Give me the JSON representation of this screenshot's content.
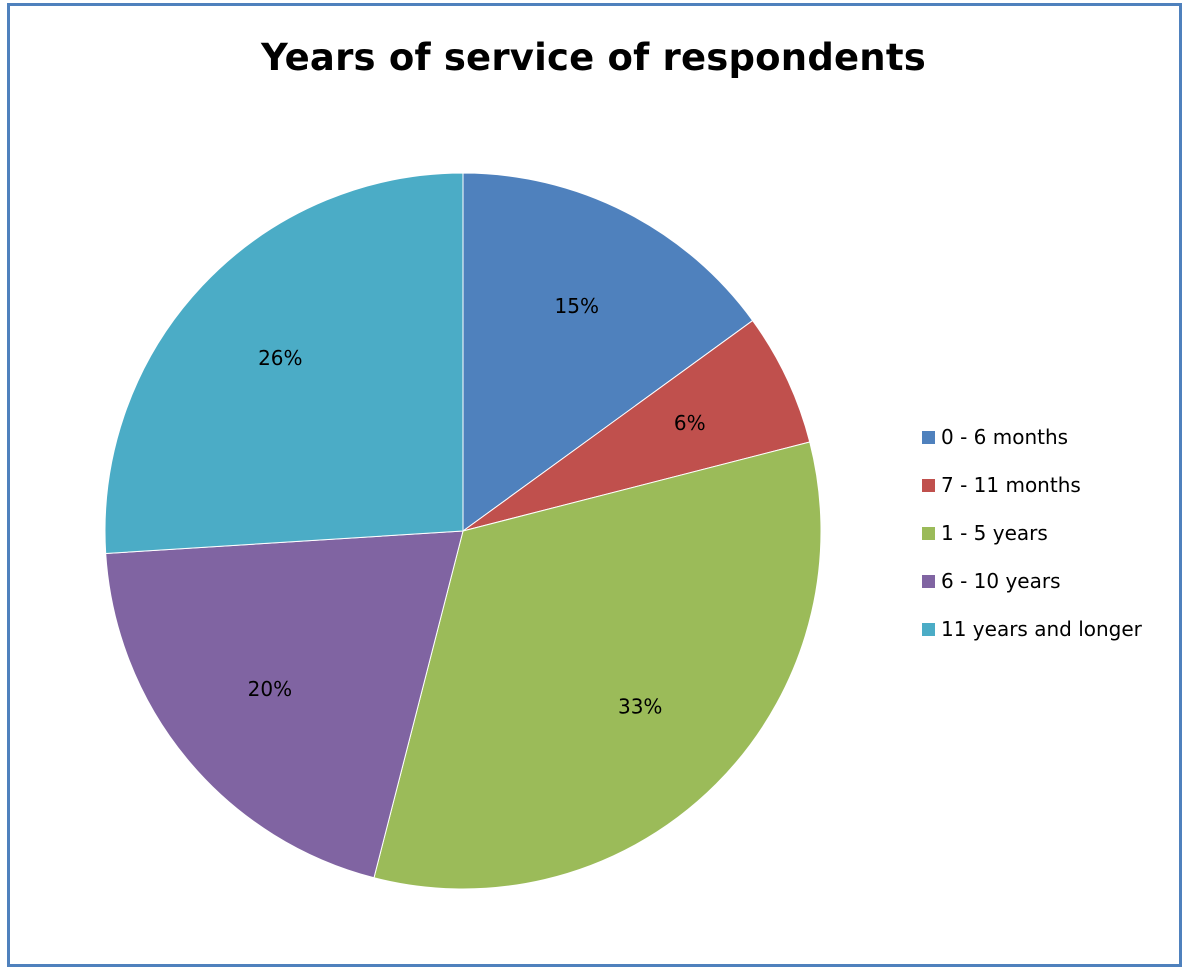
{
  "chart_data": {
    "type": "pie",
    "title": "Years of service of respondents",
    "categories": [
      "0 - 6 months",
      "7 - 11 months",
      "1 - 5 years",
      "6 - 10 years",
      "11 years and longer"
    ],
    "values": [
      15,
      6,
      33,
      20,
      26
    ],
    "value_labels": [
      "15%",
      "6%",
      "33%",
      "20%",
      "26%"
    ],
    "colors": [
      "#4f81bd",
      "#c0504d",
      "#9bbb59",
      "#8064a2",
      "#4bacc6"
    ],
    "start_angle": "12 o'clock, clockwise",
    "legend_position": "right"
  }
}
